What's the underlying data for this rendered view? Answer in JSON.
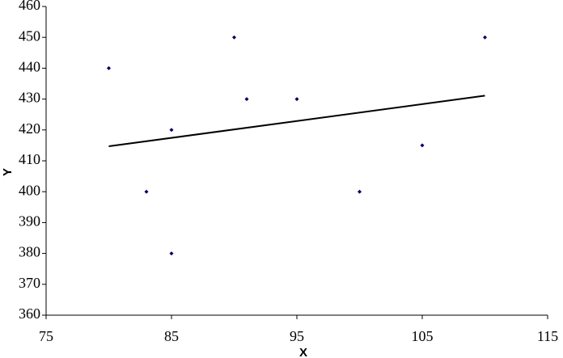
{
  "chart_data": {
    "type": "scatter",
    "x_label": "X",
    "y_label": "Y",
    "series": [
      {
        "color": "#000066",
        "x": [
          80,
          83,
          85,
          85,
          90,
          91,
          95,
          100,
          105,
          110
        ],
        "values": [
          440,
          400,
          420,
          380,
          450,
          430,
          430,
          400,
          415,
          450
        ]
      }
    ],
    "trendline": {
      "color": "#000000",
      "x": [
        80,
        110
      ],
      "values": [
        414.7,
        431.1
      ]
    },
    "xlim": [
      75,
      115
    ],
    "xticks": [
      75,
      85,
      95,
      105,
      115
    ],
    "ylim": [
      360,
      460
    ],
    "yticks": [
      360,
      370,
      380,
      390,
      400,
      410,
      420,
      430,
      440,
      450,
      460
    ],
    "grid": false
  }
}
